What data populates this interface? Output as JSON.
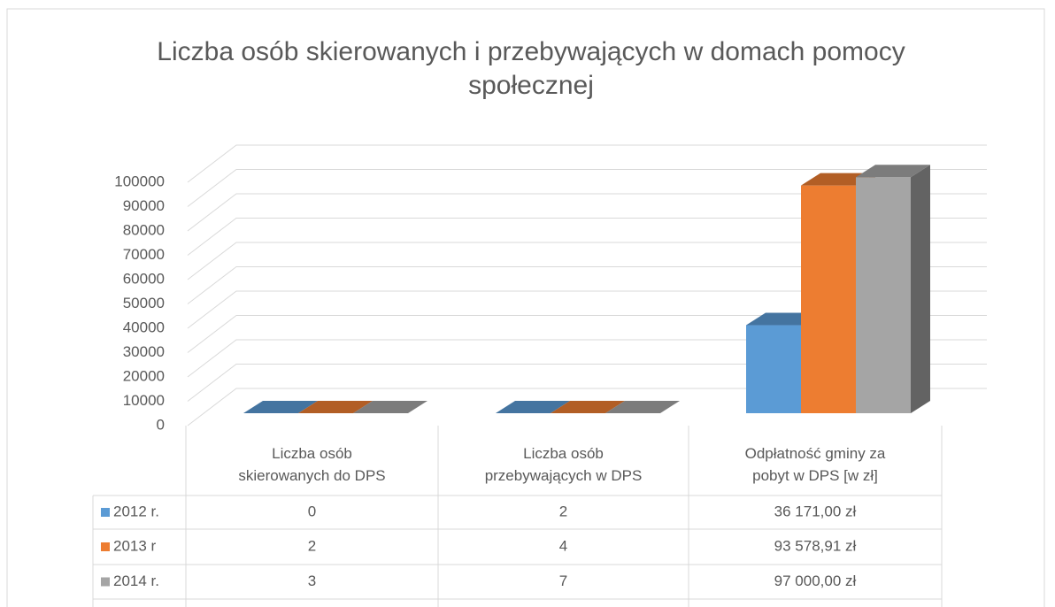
{
  "chart_data": {
    "type": "bar",
    "title": "Liczba osób skierowanych i przebywających w domach pomocy społecznej",
    "categories": [
      "Liczba osób skierowanych do DPS",
      "Liczba osób przebywających w DPS",
      "Odpłatność gminy za pobyt w DPS [w zł]"
    ],
    "series": [
      {
        "name": "2012 r.",
        "color": "#5b9bd5",
        "values": [
          0,
          2,
          36171
        ],
        "value_labels": [
          "0",
          "2",
          "36 171,00 zł"
        ]
      },
      {
        "name": "2013 r",
        "color": "#ed7d31",
        "values": [
          2,
          4,
          93578.91
        ],
        "value_labels": [
          "2",
          "4",
          "93 578,91 zł"
        ]
      },
      {
        "name": "2014 r.",
        "color": "#a5a5a5",
        "values": [
          3,
          7,
          97000
        ],
        "value_labels": [
          "3",
          "7",
          "97 000,00 zł"
        ]
      }
    ],
    "ylim": [
      0,
      100000
    ],
    "yticks": [
      0,
      10000,
      20000,
      30000,
      40000,
      50000,
      60000,
      70000,
      80000,
      90000,
      100000
    ],
    "grid": true
  }
}
